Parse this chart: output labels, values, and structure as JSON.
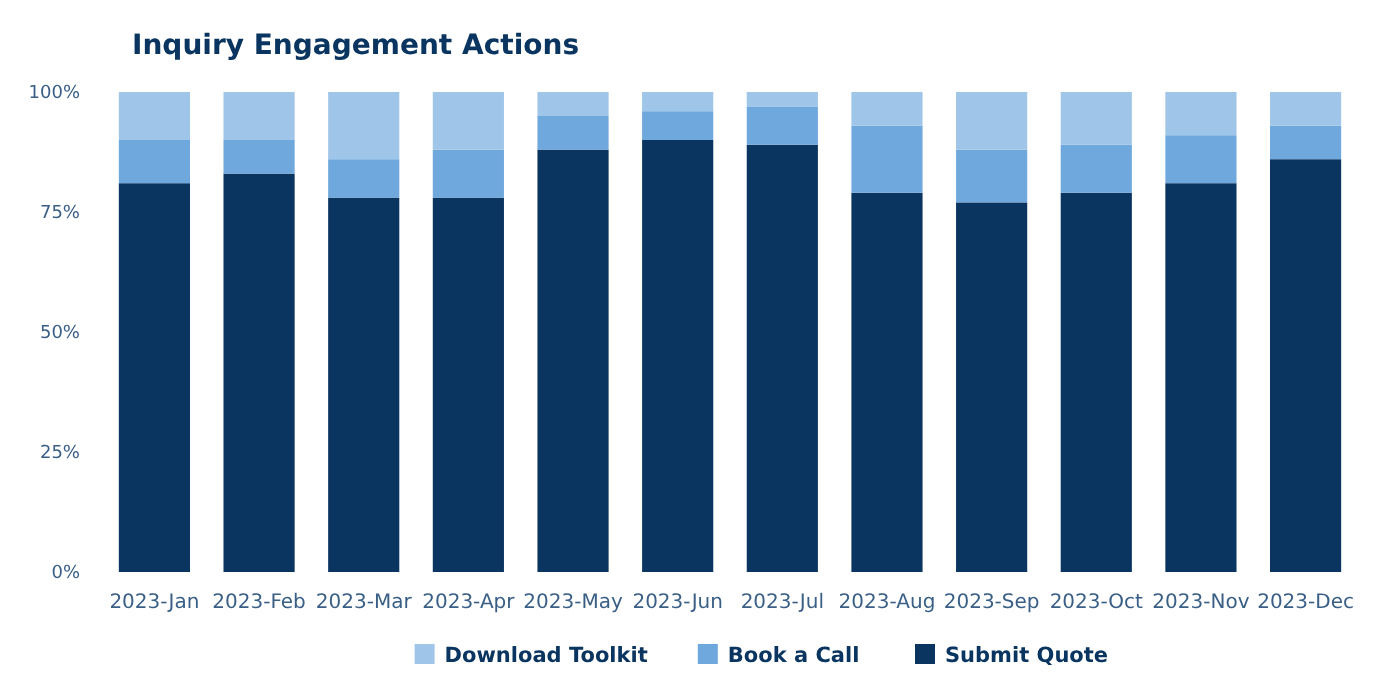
{
  "chart_data": {
    "type": "bar",
    "title": "Inquiry Engagement Actions",
    "stacked": true,
    "legend": "bottom",
    "grid": false,
    "categories": [
      "2023-Jan",
      "2023-Feb",
      "2023-Mar",
      "2023-Apr",
      "2023-May",
      "2023-Jun",
      "2023-Jul",
      "2023-Aug",
      "2023-Sep",
      "2023-Oct",
      "2023-Nov",
      "2023-Dec"
    ],
    "ylim": [
      0,
      100
    ],
    "yticks": [
      {
        "value": 0,
        "label": "0%"
      },
      {
        "value": 25,
        "label": "25%"
      },
      {
        "value": 50,
        "label": "50%"
      },
      {
        "value": 75,
        "label": "75%"
      },
      {
        "value": 100,
        "label": "100%"
      }
    ],
    "series": [
      {
        "name": "Submit Quote",
        "color": "#0a3560",
        "values": [
          81,
          83,
          78,
          78,
          88,
          90,
          89,
          79,
          77,
          79,
          81,
          86
        ]
      },
      {
        "name": "Book a Call",
        "color": "#6fa8dc",
        "values": [
          9,
          7,
          8,
          10,
          7,
          6,
          8,
          14,
          11,
          10,
          10,
          7
        ]
      },
      {
        "name": "Download Toolkit",
        "color": "#9fc5e8",
        "values": [
          10,
          10,
          14,
          12,
          5,
          4,
          3,
          7,
          12,
          11,
          9,
          7
        ]
      }
    ]
  }
}
